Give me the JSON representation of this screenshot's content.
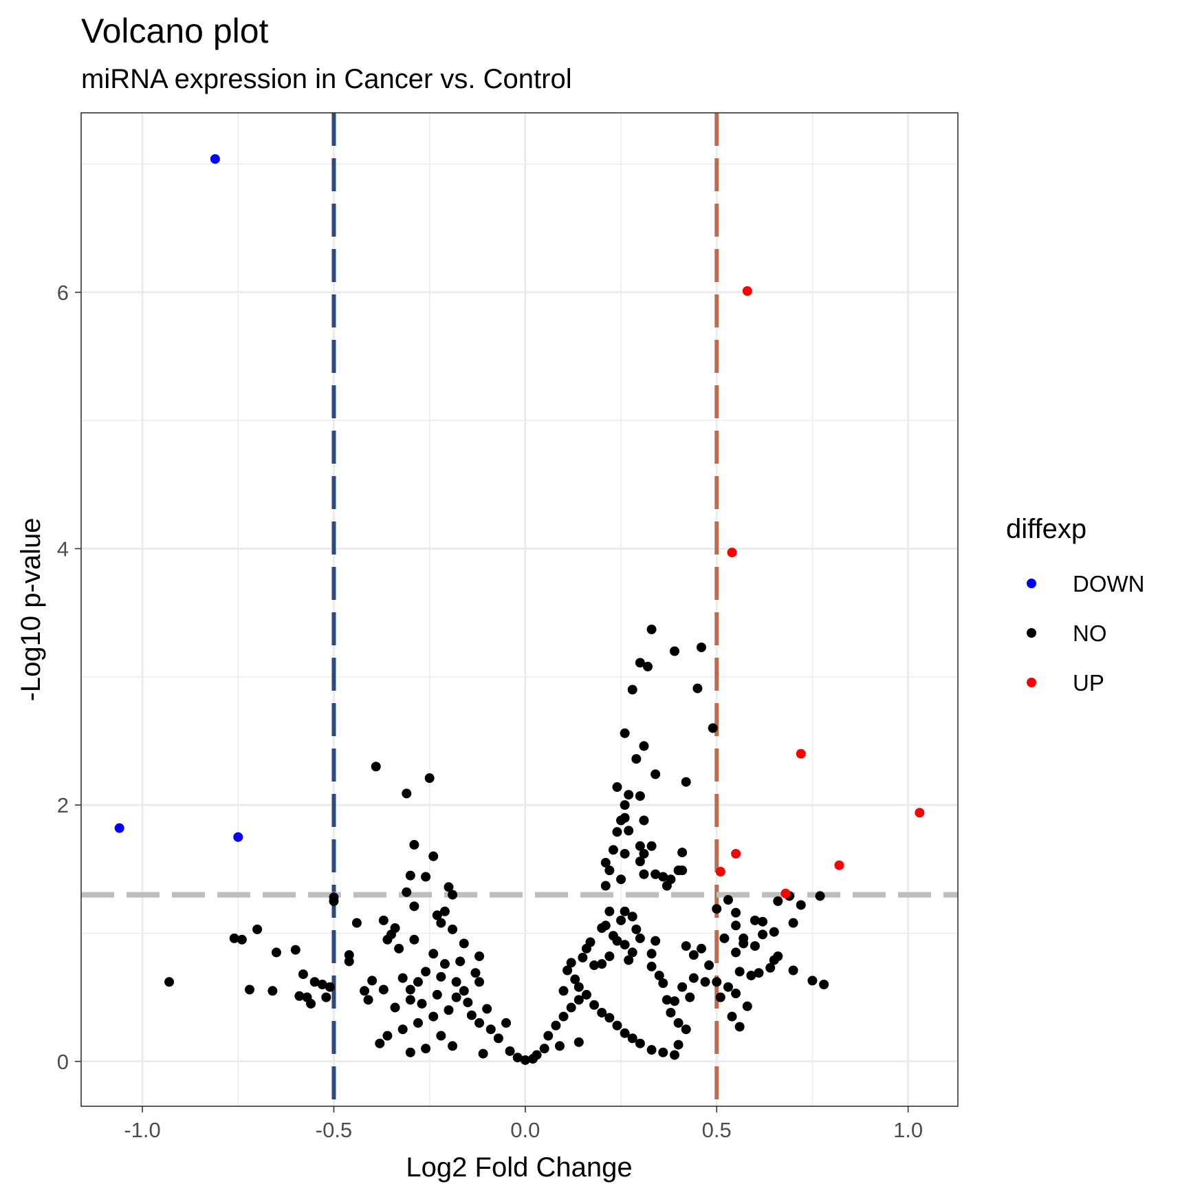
{
  "chart_data": {
    "type": "scatter",
    "title": "Volcano plot",
    "subtitle": "miRNA expression in Cancer vs. Control",
    "xlabel": "Log2 Fold Change",
    "ylabel": "-Log10 p-value",
    "xlim": [
      -1.16,
      1.13
    ],
    "ylim": [
      -0.35,
      7.4
    ],
    "x_ticks": [
      {
        "value": -1.0,
        "label": "-1.0"
      },
      {
        "value": -0.5,
        "label": "-0.5"
      },
      {
        "value": 0.0,
        "label": "0.0"
      },
      {
        "value": 0.5,
        "label": "0.5"
      },
      {
        "value": 1.0,
        "label": "1.0"
      }
    ],
    "y_ticks": [
      {
        "value": 0,
        "label": "0"
      },
      {
        "value": 2,
        "label": "2"
      },
      {
        "value": 4,
        "label": "4"
      },
      {
        "value": 6,
        "label": "6"
      }
    ],
    "grid": true,
    "reference_lines": [
      {
        "orientation": "vertical",
        "value": -0.5,
        "color": "#2e4a7d",
        "style": "dashed"
      },
      {
        "orientation": "vertical",
        "value": 0.5,
        "color": "#bc6c4f",
        "style": "dashed"
      },
      {
        "orientation": "horizontal",
        "value": 1.3,
        "color": "#bebebe",
        "style": "dashed"
      }
    ],
    "legend": {
      "title": "diffexp",
      "position": "right",
      "entries": [
        {
          "label": "DOWN",
          "color": "#0000ff"
        },
        {
          "label": "NO",
          "color": "#000000"
        },
        {
          "label": "UP",
          "color": "#ff0000"
        }
      ]
    },
    "series": [
      {
        "name": "DOWN",
        "color": "#0000ff",
        "points": [
          [
            -0.81,
            7.04
          ],
          [
            -1.06,
            1.82
          ],
          [
            -0.75,
            1.75
          ]
        ]
      },
      {
        "name": "UP",
        "color": "#ff0000",
        "points": [
          [
            0.58,
            6.01
          ],
          [
            0.54,
            3.97
          ],
          [
            0.72,
            2.4
          ],
          [
            1.03,
            1.94
          ],
          [
            0.82,
            1.53
          ],
          [
            0.55,
            1.62
          ],
          [
            0.51,
            1.48
          ],
          [
            0.68,
            1.31
          ]
        ]
      },
      {
        "name": "NO",
        "color": "#000000",
        "points": [
          [
            0.33,
            3.37
          ],
          [
            0.46,
            3.23
          ],
          [
            0.39,
            3.2
          ],
          [
            0.3,
            3.11
          ],
          [
            0.32,
            3.08
          ],
          [
            0.28,
            2.9
          ],
          [
            0.45,
            2.91
          ],
          [
            0.49,
            2.6
          ],
          [
            0.26,
            2.56
          ],
          [
            0.31,
            2.46
          ],
          [
            0.29,
            2.36
          ],
          [
            0.34,
            2.24
          ],
          [
            0.42,
            2.18
          ],
          [
            0.24,
            2.14
          ],
          [
            0.3,
            2.07
          ],
          [
            0.27,
            2.08
          ],
          [
            0.26,
            2.0
          ],
          [
            0.25,
            1.88
          ],
          [
            0.26,
            1.9
          ],
          [
            0.31,
            1.88
          ],
          [
            0.24,
            1.79
          ],
          [
            0.27,
            1.8
          ],
          [
            0.3,
            1.68
          ],
          [
            0.33,
            1.68
          ],
          [
            0.23,
            1.65
          ],
          [
            0.26,
            1.62
          ],
          [
            0.31,
            1.62
          ],
          [
            0.41,
            1.63
          ],
          [
            0.3,
            1.56
          ],
          [
            0.21,
            1.55
          ],
          [
            0.22,
            1.49
          ],
          [
            0.4,
            1.49
          ],
          [
            0.41,
            1.49
          ],
          [
            0.31,
            1.46
          ],
          [
            0.34,
            1.46
          ],
          [
            0.36,
            1.44
          ],
          [
            0.38,
            1.42
          ],
          [
            0.37,
            1.37
          ],
          [
            0.21,
            1.37
          ],
          [
            0.25,
            1.42
          ],
          [
            -0.39,
            2.3
          ],
          [
            -0.25,
            2.21
          ],
          [
            -0.31,
            2.09
          ],
          [
            -0.29,
            1.69
          ],
          [
            -0.24,
            1.6
          ],
          [
            -0.3,
            1.45
          ],
          [
            -0.26,
            1.44
          ],
          [
            -0.2,
            1.36
          ],
          [
            -0.31,
            1.32
          ],
          [
            -0.19,
            1.3
          ],
          [
            -0.29,
            1.21
          ],
          [
            -0.37,
            1.1
          ],
          [
            -0.44,
            1.08
          ],
          [
            -0.5,
            1.28
          ],
          [
            -0.5,
            1.25
          ],
          [
            -0.23,
            1.14
          ],
          [
            -0.21,
            1.17
          ],
          [
            -0.22,
            1.08
          ],
          [
            -0.34,
            1.04
          ],
          [
            -0.35,
            0.99
          ],
          [
            -0.36,
            0.95
          ],
          [
            -0.29,
            0.95
          ],
          [
            -0.19,
            1.03
          ],
          [
            -0.16,
            0.92
          ],
          [
            -0.33,
            0.88
          ],
          [
            -0.24,
            0.84
          ],
          [
            -0.17,
            0.78
          ],
          [
            -0.21,
            0.76
          ],
          [
            -0.12,
            0.82
          ],
          [
            -0.46,
            0.78
          ],
          [
            -0.46,
            0.83
          ],
          [
            -0.6,
            0.87
          ],
          [
            -0.76,
            0.96
          ],
          [
            -0.74,
            0.95
          ],
          [
            -0.7,
            1.03
          ],
          [
            -0.65,
            0.85
          ],
          [
            -0.58,
            0.68
          ],
          [
            -0.55,
            0.62
          ],
          [
            -0.53,
            0.6
          ],
          [
            -0.57,
            0.5
          ],
          [
            -0.56,
            0.45
          ],
          [
            -0.59,
            0.51
          ],
          [
            -0.52,
            0.5
          ],
          [
            -0.51,
            0.58
          ],
          [
            -0.93,
            0.62
          ],
          [
            -0.72,
            0.56
          ],
          [
            -0.66,
            0.55
          ],
          [
            -0.42,
            0.55
          ],
          [
            -0.41,
            0.48
          ],
          [
            -0.4,
            0.63
          ],
          [
            -0.37,
            0.56
          ],
          [
            -0.32,
            0.65
          ],
          [
            -0.28,
            0.62
          ],
          [
            -0.3,
            0.56
          ],
          [
            -0.26,
            0.7
          ],
          [
            -0.22,
            0.66
          ],
          [
            -0.18,
            0.62
          ],
          [
            -0.13,
            0.69
          ],
          [
            -0.12,
            0.62
          ],
          [
            0.5,
            1.19
          ],
          [
            0.53,
            1.26
          ],
          [
            0.55,
            1.16
          ],
          [
            0.52,
            0.96
          ],
          [
            0.55,
            1.06
          ],
          [
            0.57,
            0.96
          ],
          [
            0.6,
            1.1
          ],
          [
            0.62,
            1.09
          ],
          [
            0.65,
            1.01
          ],
          [
            0.66,
            1.25
          ],
          [
            0.69,
            1.29
          ],
          [
            0.7,
            1.08
          ],
          [
            0.72,
            1.22
          ],
          [
            0.77,
            1.29
          ],
          [
            0.57,
            0.92
          ],
          [
            0.62,
            0.99
          ],
          [
            0.55,
            0.85
          ],
          [
            0.6,
            0.9
          ],
          [
            0.65,
            0.79
          ],
          [
            0.66,
            0.82
          ],
          [
            0.7,
            0.71
          ],
          [
            0.75,
            0.63
          ],
          [
            0.78,
            0.6
          ],
          [
            0.56,
            0.7
          ],
          [
            0.59,
            0.67
          ],
          [
            0.61,
            0.69
          ],
          [
            0.64,
            0.73
          ],
          [
            0.53,
            0.58
          ],
          [
            0.55,
            0.53
          ],
          [
            0.58,
            0.43
          ],
          [
            0.54,
            0.35
          ],
          [
            0.56,
            0.27
          ],
          [
            0.51,
            0.5
          ],
          [
            0.5,
            0.62
          ],
          [
            0.47,
            0.62
          ],
          [
            0.48,
            0.75
          ],
          [
            0.46,
            0.88
          ],
          [
            0.44,
            0.83
          ],
          [
            0.42,
            0.9
          ],
          [
            0.44,
            0.65
          ],
          [
            0.43,
            0.5
          ],
          [
            0.41,
            0.58
          ],
          [
            0.39,
            0.47
          ],
          [
            0.4,
            0.3
          ],
          [
            0.42,
            0.25
          ],
          [
            0.4,
            0.13
          ],
          [
            0.34,
            0.94
          ],
          [
            0.33,
            0.84
          ],
          [
            0.33,
            0.74
          ],
          [
            0.35,
            0.67
          ],
          [
            0.36,
            0.61
          ],
          [
            0.37,
            0.48
          ],
          [
            0.38,
            0.38
          ],
          [
            0.3,
            0.96
          ],
          [
            0.29,
            1.03
          ],
          [
            0.28,
            1.13
          ],
          [
            0.26,
            1.17
          ],
          [
            0.25,
            1.1
          ],
          [
            0.22,
            1.17
          ],
          [
            0.21,
            1.06
          ],
          [
            0.2,
            1.04
          ],
          [
            0.23,
            0.98
          ],
          [
            0.24,
            0.94
          ],
          [
            0.26,
            0.91
          ],
          [
            0.28,
            0.85
          ],
          [
            0.27,
            0.79
          ],
          [
            0.22,
            0.82
          ],
          [
            0.2,
            0.76
          ],
          [
            0.18,
            0.75
          ],
          [
            0.17,
            0.93
          ],
          [
            0.16,
            0.88
          ],
          [
            0.15,
            0.81
          ],
          [
            0.12,
            0.77
          ],
          [
            0.11,
            0.71
          ],
          [
            0.13,
            0.64
          ],
          [
            0.14,
            0.58
          ],
          [
            0.1,
            0.55
          ],
          [
            -0.05,
            0.3
          ],
          [
            -0.1,
            0.41
          ],
          [
            -0.15,
            0.46
          ],
          [
            -0.18,
            0.5
          ],
          [
            -0.2,
            0.4
          ],
          [
            -0.24,
            0.35
          ],
          [
            -0.28,
            0.3
          ],
          [
            -0.32,
            0.25
          ],
          [
            -0.36,
            0.2
          ],
          [
            -0.38,
            0.14
          ],
          [
            -0.34,
            0.42
          ],
          [
            -0.3,
            0.48
          ],
          [
            -0.27,
            0.45
          ],
          [
            -0.23,
            0.52
          ],
          [
            -0.16,
            0.55
          ],
          [
            -0.14,
            0.36
          ],
          [
            -0.12,
            0.3
          ],
          [
            -0.09,
            0.25
          ],
          [
            -0.07,
            0.18
          ],
          [
            -0.22,
            0.2
          ],
          [
            -0.26,
            0.1
          ],
          [
            -0.3,
            0.07
          ],
          [
            -0.19,
            0.12
          ],
          [
            -0.11,
            0.06
          ],
          [
            0.06,
            0.2
          ],
          [
            0.08,
            0.28
          ],
          [
            0.1,
            0.35
          ],
          [
            0.12,
            0.42
          ],
          [
            0.14,
            0.48
          ],
          [
            0.16,
            0.52
          ],
          [
            0.18,
            0.44
          ],
          [
            0.2,
            0.38
          ],
          [
            0.22,
            0.34
          ],
          [
            0.24,
            0.28
          ],
          [
            0.26,
            0.22
          ],
          [
            0.28,
            0.18
          ],
          [
            0.3,
            0.14
          ],
          [
            0.33,
            0.09
          ],
          [
            0.36,
            0.07
          ],
          [
            0.39,
            0.05
          ],
          [
            0.05,
            0.1
          ],
          [
            0.03,
            0.05
          ],
          [
            0.0,
            0.01
          ],
          [
            -0.02,
            0.03
          ],
          [
            -0.04,
            0.08
          ],
          [
            0.02,
            0.02
          ],
          [
            0.09,
            0.12
          ],
          [
            0.14,
            0.15
          ]
        ]
      }
    ]
  }
}
